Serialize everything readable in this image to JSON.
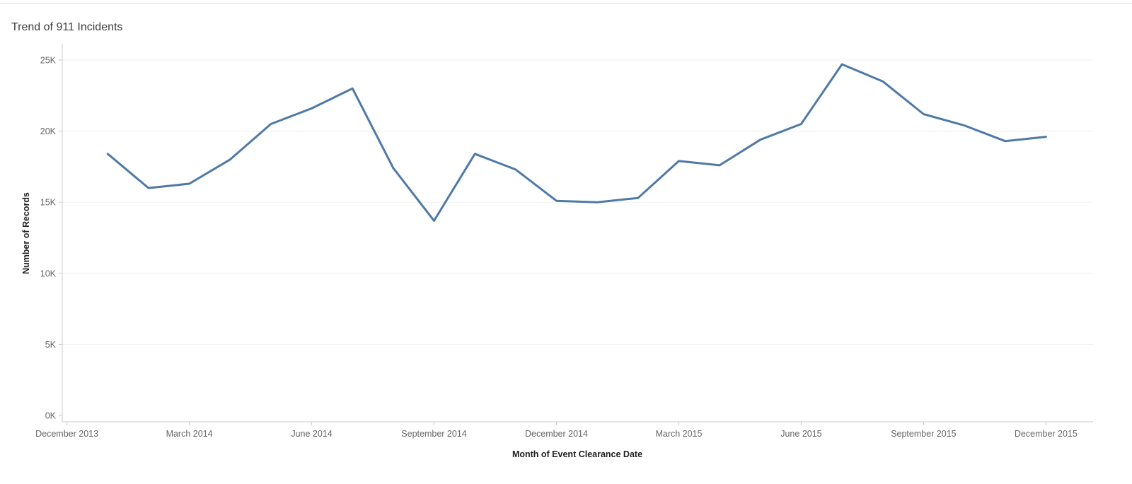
{
  "chart_data": {
    "type": "line",
    "title": "Trend of 911 Incidents",
    "xlabel": "Month of Event Clearance Date",
    "ylabel": "Number of Records",
    "x": [
      "January 2014",
      "February 2014",
      "March 2014",
      "April 2014",
      "May 2014",
      "June 2014",
      "July 2014",
      "August 2014",
      "September 2014",
      "October 2014",
      "November 2014",
      "December 2014",
      "January 2015",
      "February 2015",
      "March 2015",
      "April 2015",
      "May 2015",
      "June 2015",
      "July 2015",
      "August 2015",
      "September 2015",
      "October 2015",
      "November 2015",
      "December 2015"
    ],
    "values_thousands": [
      18.4,
      16.0,
      16.3,
      18.0,
      20.5,
      21.6,
      23.0,
      17.4,
      13.7,
      18.4,
      17.3,
      15.1,
      15.0,
      15.3,
      17.9,
      17.6,
      19.4,
      20.5,
      24.7,
      23.5,
      21.2,
      20.4,
      19.3,
      19.6
    ],
    "x_tick_labels": [
      "December 2013",
      "March 2014",
      "June 2014",
      "September 2014",
      "December 2014",
      "March 2015",
      "June 2015",
      "September 2015",
      "December 2015"
    ],
    "y_tick_labels": [
      "0K",
      "5K",
      "10K",
      "15K",
      "20K",
      "25K"
    ],
    "y_ticks_thousands": [
      0,
      5,
      10,
      15,
      20,
      25
    ],
    "ylim_thousands": [
      0,
      26
    ],
    "grid": "faint-horizontal",
    "legend": "none",
    "line_color": "#4e79a7",
    "axis_color": "#cbcbcb",
    "gridline_color": "#f0f0f0",
    "tick_label_color": "#666666",
    "title_color": "#3d3d3d"
  }
}
